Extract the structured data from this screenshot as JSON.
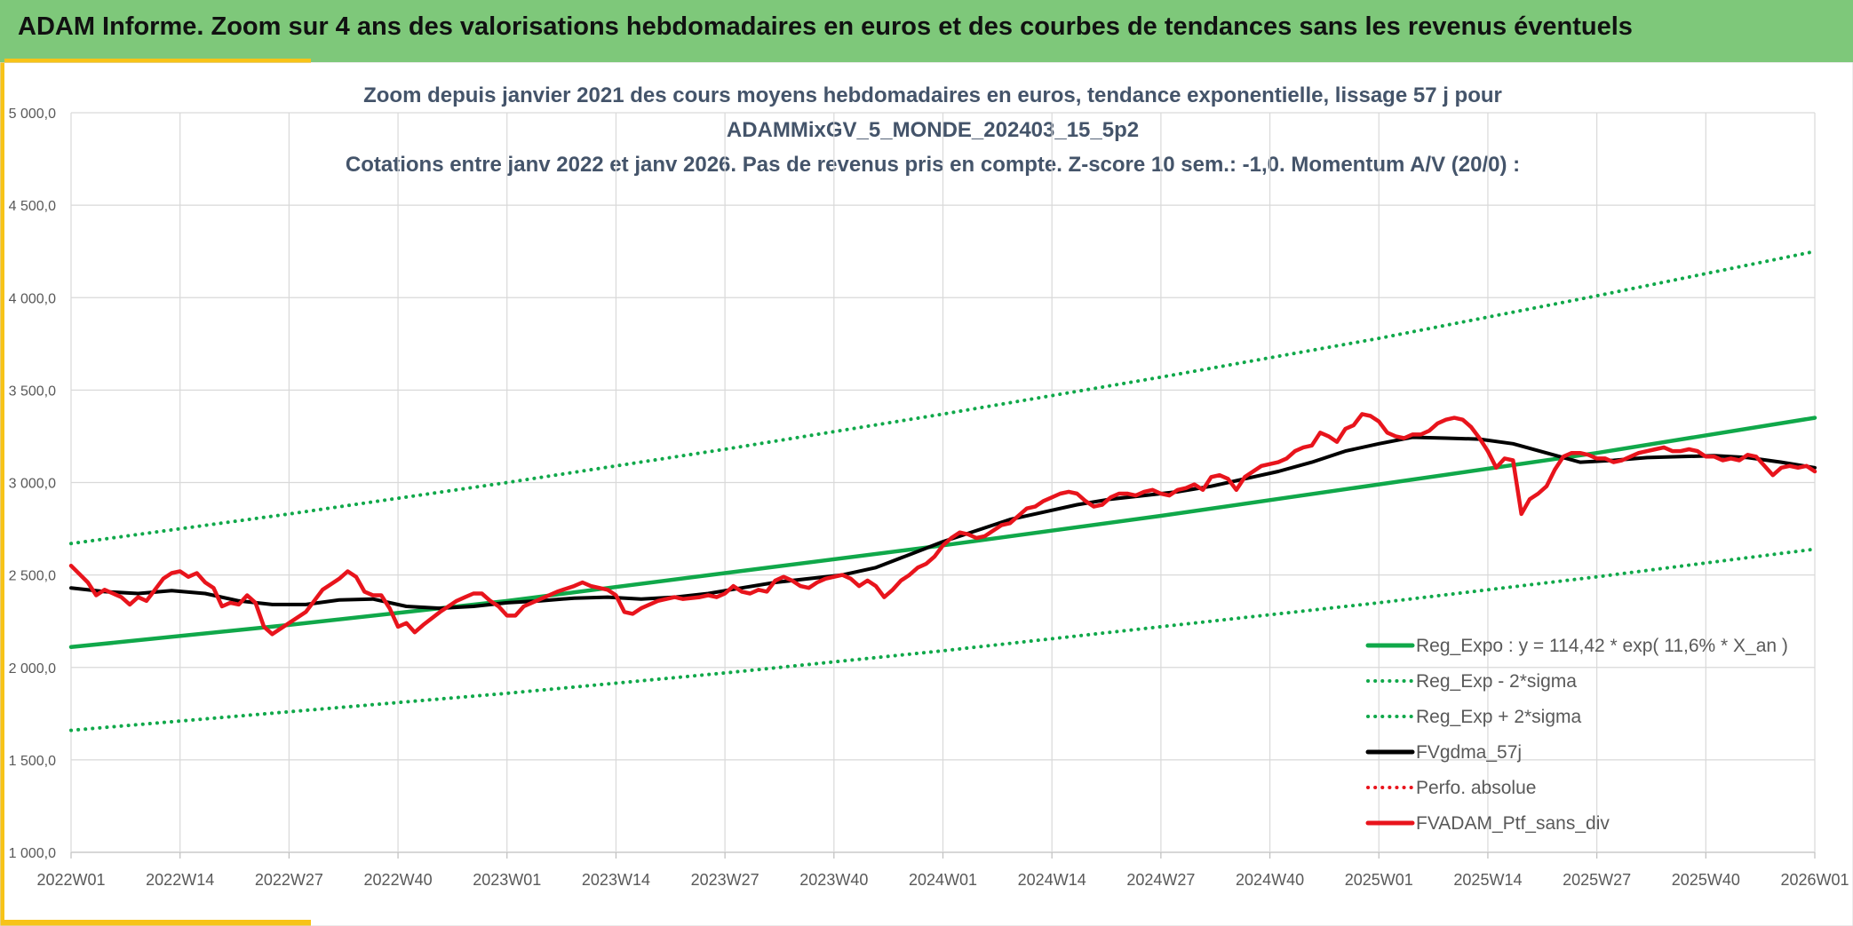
{
  "header": {
    "title": "ADAM Informe. Zoom sur 4 ans des valorisations hebdomadaires en euros et des courbes de tendances sans les revenus éventuels"
  },
  "colors": {
    "header_bg": "#7ec87a",
    "accent": "#f7c318",
    "trend": "#10a84a",
    "smoothed": "#000000",
    "portfolio": "#e8141c",
    "title_text": "#44546a"
  },
  "chart_data": {
    "type": "line",
    "title_lines": [
      "Zoom depuis janvier 2021 des cours moyens hebdomadaires en euros, tendance exponentielle, lissage 57 j pour",
      "ADAMMixGV_5_MONDE_202403_15_5p2",
      "Cotations entre janv 2022 et janv 2026. Pas de revenus pris en compte. Z-score 10 sem.: -1,0. Momentum A/V (20/0) :"
    ],
    "ylim": [
      1000,
      5000
    ],
    "y_ticks": [
      "1 000,0",
      "1 500,0",
      "2 000,0",
      "2 500,0",
      "3 000,0",
      "3 500,0",
      "4 000,0",
      "4 500,0",
      "5 000,0"
    ],
    "x_ticks": [
      "2022W01",
      "2022W14",
      "2022W27",
      "2022W40",
      "2023W01",
      "2023W14",
      "2023W27",
      "2023W40",
      "2024W01",
      "2024W14",
      "2024W27",
      "2024W40",
      "2025W01",
      "2025W14",
      "2025W27",
      "2025W40",
      "2026W01"
    ],
    "x_unit": "weeks since 2022W01",
    "grid": true,
    "legend_position": "bottom-right",
    "series": [
      {
        "name": "Reg_Expo : y = 114,42 * exp( 11,6% *  X_an )",
        "style": "solid",
        "color": "#10a84a",
        "values": [
          [
            0,
            2110
          ],
          [
            26,
            2230
          ],
          [
            52,
            2360
          ],
          [
            78,
            2510
          ],
          [
            104,
            2660
          ],
          [
            130,
            2820
          ],
          [
            156,
            2990
          ],
          [
            182,
            3160
          ],
          [
            208,
            3350
          ]
        ]
      },
      {
        "name": "Reg_Exp - 2*sigma",
        "style": "dotted",
        "color": "#10a84a",
        "values": [
          [
            0,
            1660
          ],
          [
            26,
            1760
          ],
          [
            52,
            1860
          ],
          [
            78,
            1970
          ],
          [
            104,
            2090
          ],
          [
            130,
            2220
          ],
          [
            156,
            2350
          ],
          [
            182,
            2490
          ],
          [
            208,
            2640
          ]
        ]
      },
      {
        "name": "Reg_Exp + 2*sigma",
        "style": "dotted",
        "color": "#10a84a",
        "values": [
          [
            0,
            2670
          ],
          [
            26,
            2830
          ],
          [
            52,
            3000
          ],
          [
            78,
            3180
          ],
          [
            104,
            3370
          ],
          [
            130,
            3570
          ],
          [
            156,
            3780
          ],
          [
            182,
            4010
          ],
          [
            208,
            4250
          ]
        ]
      },
      {
        "name": "FVgdma_57j",
        "style": "solid",
        "color": "#000000",
        "values": [
          [
            0,
            2430
          ],
          [
            4,
            2410
          ],
          [
            8,
            2400
          ],
          [
            12,
            2415
          ],
          [
            16,
            2400
          ],
          [
            20,
            2360
          ],
          [
            24,
            2340
          ],
          [
            28,
            2340
          ],
          [
            32,
            2365
          ],
          [
            36,
            2370
          ],
          [
            40,
            2330
          ],
          [
            44,
            2320
          ],
          [
            48,
            2330
          ],
          [
            52,
            2350
          ],
          [
            56,
            2360
          ],
          [
            60,
            2375
          ],
          [
            64,
            2380
          ],
          [
            68,
            2370
          ],
          [
            72,
            2380
          ],
          [
            76,
            2400
          ],
          [
            80,
            2430
          ],
          [
            84,
            2460
          ],
          [
            88,
            2480
          ],
          [
            92,
            2500
          ],
          [
            96,
            2540
          ],
          [
            100,
            2610
          ],
          [
            104,
            2680
          ],
          [
            108,
            2740
          ],
          [
            112,
            2800
          ],
          [
            116,
            2840
          ],
          [
            120,
            2880
          ],
          [
            124,
            2910
          ],
          [
            128,
            2930
          ],
          [
            132,
            2950
          ],
          [
            136,
            2980
          ],
          [
            140,
            3020
          ],
          [
            144,
            3060
          ],
          [
            148,
            3110
          ],
          [
            152,
            3170
          ],
          [
            156,
            3210
          ],
          [
            160,
            3245
          ],
          [
            164,
            3240
          ],
          [
            168,
            3235
          ],
          [
            172,
            3210
          ],
          [
            176,
            3160
          ],
          [
            180,
            3110
          ],
          [
            184,
            3120
          ],
          [
            188,
            3135
          ],
          [
            192,
            3140
          ],
          [
            196,
            3145
          ],
          [
            200,
            3135
          ],
          [
            204,
            3110
          ],
          [
            208,
            3080
          ]
        ]
      },
      {
        "name": "Perfo. absolue",
        "style": "dotted",
        "color": "#e8141c",
        "values": []
      },
      {
        "name": "FVADAM_Ptf_sans_div",
        "style": "solid",
        "color": "#e8141c",
        "values": [
          [
            0,
            2550
          ],
          [
            2,
            2460
          ],
          [
            3,
            2390
          ],
          [
            4,
            2420
          ],
          [
            6,
            2380
          ],
          [
            7,
            2340
          ],
          [
            8,
            2380
          ],
          [
            9,
            2360
          ],
          [
            10,
            2420
          ],
          [
            11,
            2480
          ],
          [
            12,
            2510
          ],
          [
            13,
            2520
          ],
          [
            14,
            2490
          ],
          [
            15,
            2510
          ],
          [
            16,
            2460
          ],
          [
            17,
            2430
          ],
          [
            18,
            2330
          ],
          [
            19,
            2350
          ],
          [
            20,
            2340
          ],
          [
            21,
            2390
          ],
          [
            22,
            2350
          ],
          [
            23,
            2220
          ],
          [
            24,
            2180
          ],
          [
            26,
            2240
          ],
          [
            28,
            2300
          ],
          [
            29,
            2360
          ],
          [
            30,
            2420
          ],
          [
            31,
            2450
          ],
          [
            32,
            2480
          ],
          [
            33,
            2520
          ],
          [
            34,
            2490
          ],
          [
            35,
            2410
          ],
          [
            36,
            2390
          ],
          [
            37,
            2390
          ],
          [
            38,
            2320
          ],
          [
            39,
            2220
          ],
          [
            40,
            2240
          ],
          [
            41,
            2190
          ],
          [
            42,
            2230
          ],
          [
            44,
            2300
          ],
          [
            46,
            2360
          ],
          [
            47,
            2380
          ],
          [
            48,
            2400
          ],
          [
            49,
            2400
          ],
          [
            50,
            2360
          ],
          [
            51,
            2330
          ],
          [
            52,
            2280
          ],
          [
            53,
            2280
          ],
          [
            54,
            2330
          ],
          [
            56,
            2370
          ],
          [
            58,
            2410
          ],
          [
            60,
            2440
          ],
          [
            61,
            2460
          ],
          [
            62,
            2440
          ],
          [
            64,
            2420
          ],
          [
            65,
            2390
          ],
          [
            66,
            2300
          ],
          [
            67,
            2290
          ],
          [
            68,
            2320
          ],
          [
            70,
            2360
          ],
          [
            72,
            2380
          ],
          [
            73,
            2370
          ],
          [
            75,
            2380
          ],
          [
            76,
            2390
          ],
          [
            77,
            2380
          ],
          [
            78,
            2400
          ],
          [
            79,
            2440
          ],
          [
            80,
            2410
          ],
          [
            81,
            2400
          ],
          [
            82,
            2420
          ],
          [
            83,
            2410
          ],
          [
            84,
            2470
          ],
          [
            85,
            2490
          ],
          [
            86,
            2470
          ],
          [
            87,
            2440
          ],
          [
            88,
            2430
          ],
          [
            89,
            2460
          ],
          [
            90,
            2480
          ],
          [
            92,
            2500
          ],
          [
            93,
            2480
          ],
          [
            94,
            2440
          ],
          [
            95,
            2470
          ],
          [
            96,
            2440
          ],
          [
            97,
            2380
          ],
          [
            98,
            2420
          ],
          [
            99,
            2470
          ],
          [
            100,
            2500
          ],
          [
            101,
            2540
          ],
          [
            102,
            2560
          ],
          [
            103,
            2600
          ],
          [
            104,
            2660
          ],
          [
            105,
            2700
          ],
          [
            106,
            2730
          ],
          [
            107,
            2720
          ],
          [
            108,
            2700
          ],
          [
            109,
            2710
          ],
          [
            110,
            2740
          ],
          [
            111,
            2770
          ],
          [
            112,
            2780
          ],
          [
            113,
            2820
          ],
          [
            114,
            2860
          ],
          [
            115,
            2870
          ],
          [
            116,
            2900
          ],
          [
            117,
            2920
          ],
          [
            118,
            2940
          ],
          [
            119,
            2950
          ],
          [
            120,
            2940
          ],
          [
            121,
            2900
          ],
          [
            122,
            2870
          ],
          [
            123,
            2880
          ],
          [
            124,
            2920
          ],
          [
            125,
            2940
          ],
          [
            126,
            2940
          ],
          [
            127,
            2930
          ],
          [
            128,
            2950
          ],
          [
            129,
            2960
          ],
          [
            130,
            2940
          ],
          [
            131,
            2930
          ],
          [
            132,
            2960
          ],
          [
            133,
            2970
          ],
          [
            134,
            2990
          ],
          [
            135,
            2960
          ],
          [
            136,
            3030
          ],
          [
            137,
            3040
          ],
          [
            138,
            3020
          ],
          [
            139,
            2960
          ],
          [
            140,
            3030
          ],
          [
            141,
            3060
          ],
          [
            142,
            3090
          ],
          [
            143,
            3100
          ],
          [
            144,
            3110
          ],
          [
            145,
            3130
          ],
          [
            146,
            3170
          ],
          [
            147,
            3190
          ],
          [
            148,
            3200
          ],
          [
            149,
            3270
          ],
          [
            150,
            3250
          ],
          [
            151,
            3220
          ],
          [
            152,
            3290
          ],
          [
            153,
            3310
          ],
          [
            154,
            3370
          ],
          [
            155,
            3360
          ],
          [
            156,
            3330
          ],
          [
            157,
            3270
          ],
          [
            158,
            3250
          ],
          [
            159,
            3240
          ],
          [
            160,
            3260
          ],
          [
            161,
            3260
          ],
          [
            162,
            3280
          ],
          [
            163,
            3320
          ],
          [
            164,
            3340
          ],
          [
            165,
            3350
          ],
          [
            166,
            3340
          ],
          [
            167,
            3300
          ],
          [
            168,
            3240
          ],
          [
            169,
            3170
          ],
          [
            170,
            3080
          ],
          [
            171,
            3130
          ],
          [
            172,
            3120
          ],
          [
            173,
            2830
          ],
          [
            174,
            2910
          ],
          [
            175,
            2940
          ],
          [
            176,
            2980
          ],
          [
            177,
            3070
          ],
          [
            178,
            3140
          ],
          [
            179,
            3160
          ],
          [
            180,
            3160
          ],
          [
            181,
            3150
          ],
          [
            182,
            3130
          ],
          [
            183,
            3130
          ],
          [
            184,
            3110
          ],
          [
            185,
            3120
          ],
          [
            186,
            3140
          ],
          [
            187,
            3160
          ],
          [
            188,
            3170
          ],
          [
            189,
            3180
          ],
          [
            190,
            3190
          ],
          [
            191,
            3170
          ],
          [
            192,
            3170
          ],
          [
            193,
            3180
          ],
          [
            194,
            3170
          ],
          [
            195,
            3140
          ],
          [
            196,
            3140
          ],
          [
            197,
            3120
          ],
          [
            198,
            3130
          ],
          [
            199,
            3120
          ],
          [
            200,
            3150
          ],
          [
            201,
            3140
          ],
          [
            202,
            3090
          ],
          [
            203,
            3040
          ],
          [
            204,
            3080
          ],
          [
            205,
            3090
          ],
          [
            206,
            3080
          ],
          [
            207,
            3090
          ],
          [
            208,
            3060
          ]
        ]
      }
    ]
  }
}
